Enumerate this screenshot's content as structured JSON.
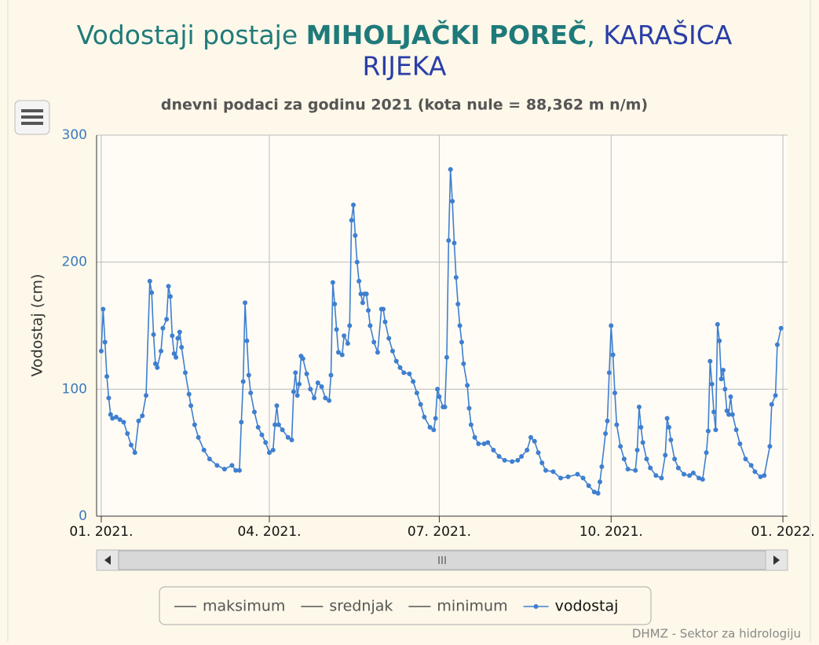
{
  "chart_data": {
    "type": "line",
    "title_parts": [
      "Vodostaji postaje ",
      "MIHOLJAČKI POREČ",
      ", ",
      "KARAŠICA",
      "RIJEKA"
    ],
    "subtitle": "dnevni podaci za godinu 2021 (kota nule = 88,362 m n/m)",
    "ylabel": "Vodostaj (cm)",
    "credit": "DHMZ - Sektor za hidrologiju",
    "xlim": [
      -2.5,
      367.5
    ],
    "xticks": [
      {
        "value": 0,
        "label": "01. 2021."
      },
      {
        "value": 90,
        "label": "04. 2021."
      },
      {
        "value": 181,
        "label": "07. 2021."
      },
      {
        "value": 273,
        "label": "10. 2021."
      },
      {
        "value": 365,
        "label": "01. 2022."
      }
    ],
    "ylim": [
      0,
      300
    ],
    "yticks": [
      0,
      100,
      200,
      300
    ],
    "grid": true,
    "legend_items": [
      {
        "name": "maksimum",
        "color": "#555555"
      },
      {
        "name": "srednjak",
        "color": "#555555"
      },
      {
        "name": "minimum",
        "color": "#555555"
      }
    ],
    "series": [
      {
        "name": "vodostaj",
        "color": "#3f7fd0",
        "x": [
          0,
          1,
          2,
          3,
          4,
          5,
          6,
          8,
          10,
          12,
          14,
          16,
          18,
          20,
          22,
          24,
          26,
          27,
          28,
          29,
          30,
          32,
          33,
          35,
          36,
          37,
          38,
          39,
          40,
          41,
          42,
          43,
          45,
          47,
          48,
          50,
          52,
          55,
          58,
          62,
          66,
          70,
          72,
          74,
          75,
          76,
          77,
          78,
          79,
          80,
          82,
          84,
          86,
          88,
          90,
          92,
          93,
          94,
          95,
          97,
          100,
          102,
          103,
          104,
          105,
          106,
          107,
          108,
          110,
          112,
          114,
          116,
          118,
          120,
          122,
          123,
          124,
          125,
          126,
          127,
          129,
          130,
          132,
          133,
          134,
          135,
          136,
          137,
          138,
          139,
          140,
          141,
          142,
          143,
          144,
          146,
          148,
          150,
          151,
          152,
          154,
          156,
          158,
          160,
          162,
          165,
          167,
          169,
          171,
          173,
          176,
          178,
          179,
          180,
          181,
          183,
          184,
          185,
          186,
          187,
          188,
          189,
          190,
          191,
          192,
          193,
          194,
          196,
          197,
          198,
          200,
          202,
          205,
          207,
          210,
          213,
          216,
          220,
          223,
          225,
          228,
          230,
          232,
          234,
          236,
          238,
          242,
          246,
          250,
          255,
          258,
          261,
          264,
          266,
          267,
          268,
          270,
          271,
          272,
          273,
          274,
          275,
          276,
          278,
          280,
          282,
          286,
          287,
          288,
          289,
          290,
          292,
          294,
          297,
          300,
          302,
          303,
          304,
          305,
          307,
          309,
          312,
          315,
          317,
          320,
          322,
          324,
          325,
          326,
          327,
          328,
          329,
          330,
          331,
          332,
          333,
          334,
          335,
          336,
          337,
          338,
          340,
          342,
          345,
          348,
          350,
          353,
          355,
          358,
          359,
          361,
          362,
          364
        ],
        "values": [
          130,
          163,
          137,
          110,
          93,
          80,
          77,
          78,
          76,
          74,
          65,
          56,
          50,
          75,
          79,
          95,
          185,
          176,
          143,
          120,
          117,
          130,
          148,
          155,
          181,
          173,
          142,
          128,
          125,
          140,
          145,
          133,
          113,
          96,
          87,
          72,
          62,
          52,
          45,
          40,
          37,
          40,
          36,
          36,
          74,
          106,
          168,
          138,
          111,
          97,
          82,
          70,
          64,
          58,
          50,
          52,
          72,
          87,
          72,
          68,
          62,
          60,
          98,
          113,
          95,
          104,
          126,
          124,
          112,
          100,
          93,
          105,
          102,
          93,
          91,
          111,
          184,
          167,
          147,
          129,
          127,
          142,
          136,
          150,
          233,
          245,
          221,
          200,
          185,
          175,
          168,
          175,
          175,
          162,
          150,
          137,
          129,
          163,
          163,
          153,
          140,
          130,
          122,
          117,
          113,
          112,
          106,
          97,
          88,
          78,
          70,
          68,
          77,
          100,
          94,
          86,
          86,
          125,
          217,
          273,
          248,
          215,
          188,
          167,
          150,
          137,
          120,
          103,
          85,
          72,
          62,
          57,
          57,
          58,
          52,
          47,
          44,
          43,
          44,
          47,
          52,
          62,
          59,
          50,
          42,
          36,
          35,
          30,
          31,
          33,
          30,
          24,
          19,
          18,
          27,
          39,
          65,
          75,
          113,
          150,
          127,
          97,
          72,
          55,
          45,
          37,
          36,
          52,
          86,
          70,
          58,
          45,
          38,
          32,
          30,
          48,
          77,
          70,
          60,
          45,
          38,
          33,
          32,
          34,
          30,
          29,
          50,
          67,
          122,
          104,
          82,
          68,
          151,
          138,
          108,
          115,
          100,
          83,
          80,
          94,
          80,
          68,
          57,
          45,
          40,
          35,
          31,
          32,
          55,
          88,
          95,
          135,
          148
        ]
      }
    ]
  }
}
